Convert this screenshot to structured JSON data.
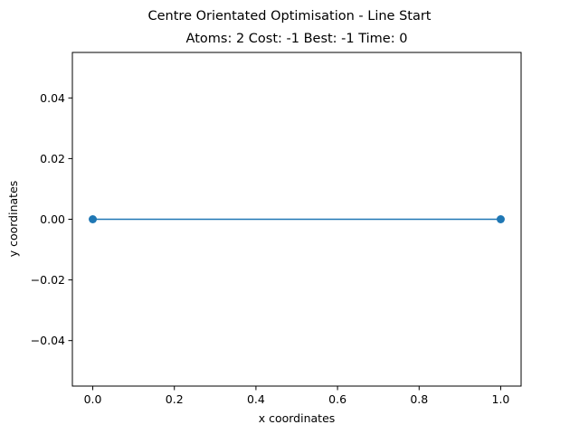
{
  "chart_data": {
    "type": "line",
    "title": "Centre Orientated Optimisation - Line Start",
    "subtitle": "Atoms: 2 Cost: -1 Best: -1 Time: 0",
    "xlabel": "x coordinates",
    "ylabel": "y coordinates",
    "xlim": [
      -0.05,
      1.05
    ],
    "ylim": [
      -0.055,
      0.055
    ],
    "x_ticks": [
      0.0,
      0.2,
      0.4,
      0.6,
      0.8,
      1.0
    ],
    "x_tick_labels": [
      "0.0",
      "0.2",
      "0.4",
      "0.6",
      "0.8",
      "1.0"
    ],
    "y_ticks": [
      0.04,
      0.02,
      0.0,
      -0.02,
      -0.04
    ],
    "y_tick_labels": [
      "0.04",
      "0.02",
      "0.00",
      "−0.02",
      "−0.04"
    ],
    "grid": false,
    "series": [
      {
        "x": [
          0,
          1
        ],
        "y": [
          0,
          0
        ],
        "color": "#1f77b4",
        "marker": "circle"
      }
    ]
  }
}
